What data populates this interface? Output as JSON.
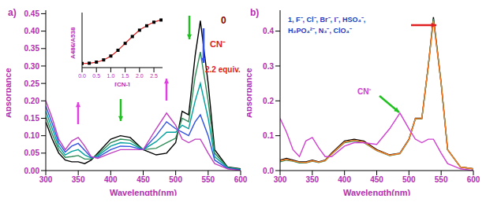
{
  "chart_data": [
    {
      "type": "line",
      "title": "a)",
      "x_label": "Wavelength(nm)",
      "y_label": "Absorbance",
      "x": [
        300,
        310,
        320,
        330,
        340,
        350,
        360,
        370,
        380,
        400,
        415,
        430,
        450,
        470,
        486,
        500,
        510,
        520,
        530,
        538,
        550,
        560,
        580,
        600
      ],
      "xlim": [
        300,
        600
      ],
      "xticks": [
        300,
        350,
        400,
        450,
        500,
        550,
        600
      ],
      "ylim": [
        0,
        0.46
      ],
      "yticks": [
        {
          "value": 0,
          "label": "0.00"
        },
        {
          "value": 0.05,
          "label": "0.05"
        },
        {
          "value": 0.1,
          "label": "0.10"
        },
        {
          "value": 0.15,
          "label": "0.15"
        },
        {
          "value": 0.2,
          "label": "0.20"
        },
        {
          "value": 0.25,
          "label": "0.25"
        },
        {
          "value": 0.3,
          "label": "0.30"
        },
        {
          "value": 0.35,
          "label": "0.35"
        },
        {
          "value": 0.4,
          "label": "0.40"
        },
        {
          "value": 0.45,
          "label": "0.45"
        }
      ],
      "grid": false,
      "series": [
        {
          "color": "#000000",
          "values": [
            0.14,
            0.09,
            0.05,
            0.03,
            0.025,
            0.025,
            0.02,
            0.03,
            0.05,
            0.09,
            0.1,
            0.095,
            0.06,
            0.045,
            0.05,
            0.08,
            0.17,
            0.16,
            0.33,
            0.43,
            0.25,
            0.06,
            0.01,
            0.005
          ]
        },
        {
          "color": "#2e8b57",
          "values": [
            0.155,
            0.105,
            0.06,
            0.038,
            0.04,
            0.043,
            0.033,
            0.033,
            0.046,
            0.08,
            0.09,
            0.087,
            0.06,
            0.064,
            0.08,
            0.093,
            0.15,
            0.14,
            0.27,
            0.34,
            0.2,
            0.05,
            0.009,
            0.004
          ]
        },
        {
          "color": "#00a0a0",
          "values": [
            0.17,
            0.12,
            0.07,
            0.045,
            0.055,
            0.06,
            0.045,
            0.036,
            0.042,
            0.07,
            0.08,
            0.078,
            0.06,
            0.083,
            0.11,
            0.11,
            0.13,
            0.12,
            0.2,
            0.25,
            0.15,
            0.04,
            0.008,
            0.003
          ]
        },
        {
          "color": "#3050e0",
          "values": [
            0.185,
            0.135,
            0.08,
            0.053,
            0.07,
            0.078,
            0.058,
            0.038,
            0.038,
            0.06,
            0.07,
            0.069,
            0.06,
            0.1,
            0.14,
            0.12,
            0.11,
            0.1,
            0.14,
            0.16,
            0.1,
            0.03,
            0.006,
            0.002
          ]
        },
        {
          "color": "#c040c0",
          "values": [
            0.2,
            0.15,
            0.09,
            0.06,
            0.085,
            0.095,
            0.07,
            0.04,
            0.035,
            0.05,
            0.06,
            0.06,
            0.06,
            0.12,
            0.165,
            0.13,
            0.09,
            0.08,
            0.09,
            0.09,
            0.05,
            0.02,
            0.005,
            0
          ]
        }
      ],
      "annotations": [
        {
          "text": "0",
          "color": "#8b0000"
        },
        {
          "text": "CN⁻",
          "color": "#e02020"
        },
        {
          "text": "2.2 equiv.",
          "color": "#e02020"
        }
      ]
    },
    {
      "type": "line",
      "x_label": "[CN-]",
      "y_label": "A486/A538",
      "x": [
        0,
        0.25,
        0.5,
        0.75,
        1,
        1.25,
        1.5,
        1.75,
        2,
        2.25,
        2.5,
        2.75
      ],
      "xlim": [
        0,
        2.8
      ],
      "xticks": [
        {
          "value": 0,
          "label": "0.0"
        },
        {
          "value": 0.5,
          "label": "0.5"
        },
        {
          "value": 1,
          "label": "1.0"
        },
        {
          "value": 1.5,
          "label": "1.5"
        },
        {
          "value": 2,
          "label": "2.0"
        },
        {
          "value": 2.5,
          "label": "2.5"
        }
      ],
      "ylim": [
        0,
        2
      ],
      "tick_labels": "x",
      "marker": "square",
      "series": [
        {
          "color": "#e02020",
          "values": [
            0.15,
            0.16,
            0.2,
            0.28,
            0.42,
            0.63,
            0.88,
            1.13,
            1.36,
            1.52,
            1.65,
            1.73
          ]
        }
      ]
    },
    {
      "type": "line",
      "title": "b)",
      "x_label": "Wavelength(nm)",
      "y_label": "Absorbance",
      "x": [
        300,
        310,
        320,
        330,
        340,
        350,
        360,
        370,
        380,
        400,
        415,
        430,
        450,
        470,
        486,
        500,
        510,
        520,
        530,
        538,
        550,
        560,
        580,
        600
      ],
      "xlim": [
        300,
        600
      ],
      "xticks": [
        300,
        350,
        400,
        450,
        500,
        550,
        600
      ],
      "ylim": [
        0,
        0.46
      ],
      "yticks": [
        {
          "value": 0,
          "label": "0.0"
        },
        {
          "value": 0.1,
          "label": "0.1"
        },
        {
          "value": 0.2,
          "label": "0.2"
        },
        {
          "value": 0.3,
          "label": "0.3"
        },
        {
          "value": 0.4,
          "label": "0.4"
        }
      ],
      "grid": false,
      "series": [
        {
          "color": "#000000",
          "values": [
            0.03,
            0.035,
            0.03,
            0.025,
            0.025,
            0.03,
            0.025,
            0.03,
            0.05,
            0.085,
            0.09,
            0.085,
            0.06,
            0.045,
            0.05,
            0.09,
            0.15,
            0.15,
            0.3,
            0.44,
            0.25,
            0.06,
            0.01,
            0.005
          ]
        },
        {
          "color": "#2e8b57",
          "values": [
            0.025,
            0.03,
            0.027,
            0.022,
            0.022,
            0.027,
            0.023,
            0.028,
            0.047,
            0.08,
            0.085,
            0.08,
            0.057,
            0.043,
            0.048,
            0.088,
            0.148,
            0.148,
            0.3,
            0.435,
            0.25,
            0.06,
            0.01,
            0.005
          ]
        },
        {
          "color": "#ff7f27",
          "values": [
            0.028,
            0.032,
            0.028,
            0.024,
            0.023,
            0.028,
            0.024,
            0.029,
            0.048,
            0.082,
            0.087,
            0.082,
            0.058,
            0.044,
            0.049,
            0.089,
            0.149,
            0.149,
            0.3,
            0.43,
            0.25,
            0.06,
            0.01,
            0.005
          ]
        },
        {
          "color": "#d040d0",
          "values": [
            0.15,
            0.11,
            0.06,
            0.04,
            0.085,
            0.095,
            0.065,
            0.04,
            0.04,
            0.07,
            0.08,
            0.08,
            0.075,
            0.12,
            0.165,
            0.12,
            0.09,
            0.08,
            0.09,
            0.09,
            0.05,
            0.02,
            0.005,
            0
          ]
        }
      ],
      "annotations": [
        {
          "text": "1, F⁻, Cl⁻, Br⁻, I⁻, HSO₄⁻,",
          "color": "#2040c0"
        },
        {
          "text": "H₂PO₄²⁻, N₃⁻, ClO₄⁻",
          "color": "#2040c0"
        },
        {
          "text": "CN⁻",
          "color": "#d040d0"
        }
      ]
    }
  ]
}
